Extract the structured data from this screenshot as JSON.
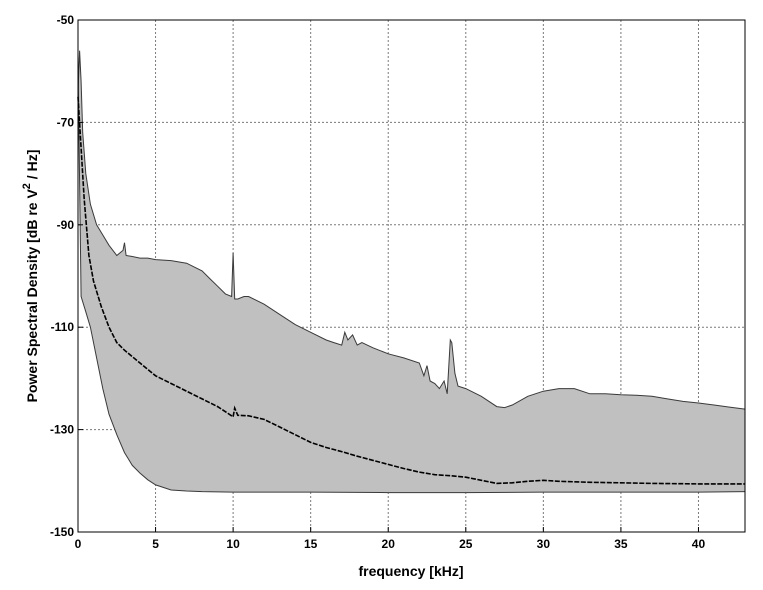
{
  "chart_data": {
    "type": "area",
    "xlabel": "frequency [kHz]",
    "ylabel": {
      "before": "Power Spectral Density [dB re V",
      "superscript": "2",
      "after": " / Hz]"
    },
    "xlim": [
      0,
      43
    ],
    "ylim": [
      -150,
      -50
    ],
    "xticks": [
      0,
      5,
      10,
      15,
      20,
      25,
      30,
      35,
      40
    ],
    "yticks": [
      -150,
      -130,
      -110,
      -90,
      -70,
      -50
    ],
    "grid": true,
    "legend": "none",
    "colors": {
      "band_fill": "#c0c0c0",
      "band_edge": "#3a3a3a",
      "median_line": "#000000",
      "grid": "#7a7a7a"
    },
    "series": [
      {
        "role": "upper-envelope",
        "x": [
          0,
          0.1,
          0.2,
          0.3,
          0.5,
          0.8,
          1.2,
          1.6,
          2,
          2.5,
          2.9,
          3.0,
          3.1,
          3.5,
          4,
          4.5,
          5,
          6,
          7,
          8,
          8.5,
          9,
          9.5,
          9.9,
          10.0,
          10.1,
          10.3,
          10.7,
          11,
          12,
          13,
          14,
          15,
          16,
          16.5,
          17,
          17.2,
          17.4,
          17.7,
          18,
          18.3,
          19,
          20,
          21,
          22,
          22.3,
          22.5,
          22.7,
          23,
          23.3,
          23.6,
          23.8,
          24,
          24.1,
          24.3,
          24.5,
          25,
          26,
          27,
          27.5,
          28,
          29,
          30,
          31,
          32,
          33,
          34,
          35,
          36,
          37,
          38,
          39,
          40,
          41,
          42,
          43
        ],
        "y": [
          -64,
          -56,
          -62,
          -72,
          -80,
          -86,
          -90,
          -92,
          -94,
          -96,
          -95,
          -93.5,
          -96,
          -96.2,
          -96.5,
          -96.5,
          -96.8,
          -97,
          -97.5,
          -99,
          -100.5,
          -102,
          -103.5,
          -104,
          -95.5,
          -104.5,
          -104.5,
          -104,
          -104,
          -105.5,
          -107.5,
          -109.5,
          -111,
          -112.5,
          -113,
          -113.5,
          -111,
          -112.5,
          -111.5,
          -113.5,
          -113,
          -114,
          -115.2,
          -116,
          -117,
          -119.5,
          -117.5,
          -120.5,
          -121,
          -122,
          -120.5,
          -123,
          -112.5,
          -113,
          -119,
          -121.5,
          -122,
          -123.5,
          -125.5,
          -125.7,
          -125.2,
          -123.5,
          -122.5,
          -122,
          -122,
          -123,
          -123,
          -123.2,
          -123.3,
          -123.5,
          -124,
          -124.5,
          -124.8,
          -125.2,
          -125.6,
          -126
        ]
      },
      {
        "role": "lower-envelope",
        "x": [
          0,
          0.2,
          0.5,
          0.8,
          1.2,
          1.6,
          2,
          2.5,
          3,
          3.5,
          4,
          4.5,
          5,
          6,
          7,
          8,
          10,
          15,
          20,
          25,
          30,
          35,
          40,
          43
        ],
        "y": [
          -58,
          -104,
          -107,
          -110,
          -116,
          -122,
          -127,
          -131,
          -134.5,
          -137,
          -138.5,
          -139.8,
          -140.8,
          -141.8,
          -142,
          -142.1,
          -142.2,
          -142.2,
          -142.3,
          -142.3,
          -142.2,
          -142.2,
          -142.2,
          -142.1
        ]
      },
      {
        "role": "median",
        "x": [
          0,
          0.2,
          0.4,
          0.7,
          1,
          1.5,
          2,
          2.5,
          3,
          4,
          5,
          6,
          7,
          8,
          9,
          9.5,
          10,
          10.1,
          10.3,
          11,
          12,
          13,
          14,
          15,
          16,
          17,
          18,
          19,
          20,
          21,
          22,
          23,
          24,
          25,
          26,
          27,
          28,
          29,
          30,
          31,
          32,
          33,
          35,
          37,
          40,
          43
        ],
        "y": [
          -65,
          -75,
          -85,
          -96,
          -101,
          -106,
          -110,
          -113,
          -114.5,
          -117,
          -119.5,
          -121,
          -122.5,
          -124,
          -125.5,
          -126.5,
          -127.5,
          -125.8,
          -127.2,
          -127.3,
          -128,
          -129.5,
          -131,
          -132.5,
          -133.5,
          -134.3,
          -135.2,
          -136,
          -136.8,
          -137.6,
          -138.3,
          -138.8,
          -139,
          -139.3,
          -139.9,
          -140.5,
          -140.4,
          -140.1,
          -139.9,
          -140.1,
          -140.2,
          -140.3,
          -140.4,
          -140.5,
          -140.6,
          -140.6
        ]
      }
    ]
  }
}
